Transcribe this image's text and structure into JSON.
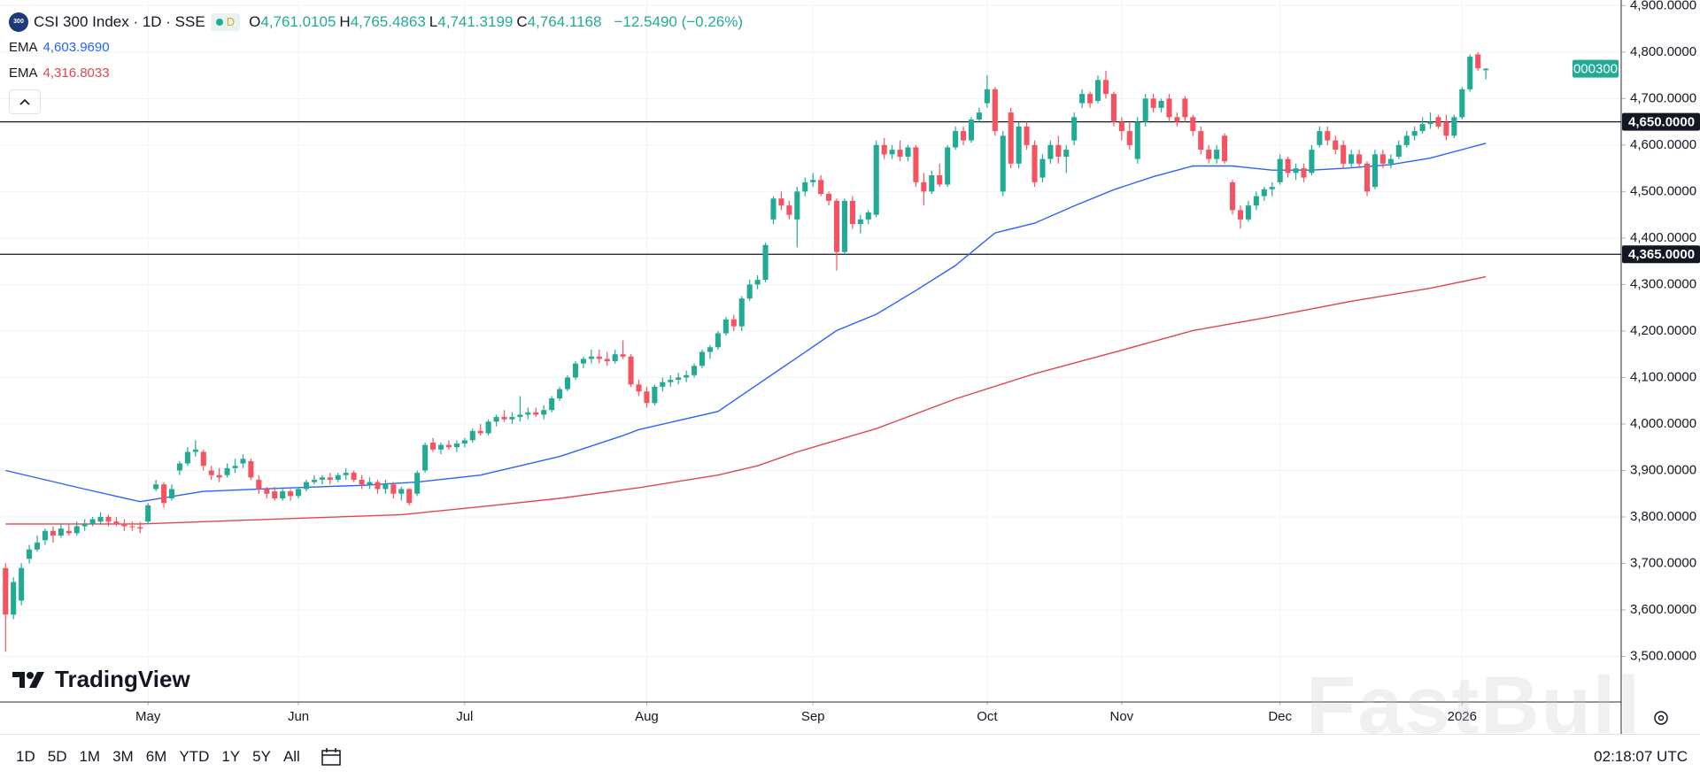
{
  "header": {
    "logo": "300",
    "symbol": "CSI 300 Index · 1D · SSE",
    "badge": "D",
    "ohlc": [
      {
        "key": "O",
        "value": "4,761.0105"
      },
      {
        "key": "H",
        "value": "4,765.4863"
      },
      {
        "key": "L",
        "value": "4,741.3199"
      },
      {
        "key": "C",
        "value": "4,764.1168"
      }
    ],
    "change": "−12.5490 (−0.26%)"
  },
  "indicators": [
    {
      "name": "EMA",
      "value": "4,603.9690"
    },
    {
      "name": "EMA",
      "value": "4,316.8033"
    }
  ],
  "chart_data": {
    "type": "candlestick",
    "up_color": "#22ab94",
    "down_color": "#f7525f",
    "grid": true,
    "ohlc": [
      [
        3690,
        3700,
        3510,
        3590
      ],
      [
        3590,
        3670,
        3580,
        3660
      ],
      [
        3620,
        3700,
        3610,
        3690
      ],
      [
        3710,
        3740,
        3700,
        3730
      ],
      [
        3730,
        3760,
        3725,
        3745
      ],
      [
        3750,
        3775,
        3740,
        3770
      ],
      [
        3770,
        3780,
        3745,
        3760
      ],
      [
        3760,
        3785,
        3755,
        3775
      ],
      [
        3770,
        3785,
        3760,
        3765
      ],
      [
        3765,
        3790,
        3760,
        3780
      ],
      [
        3780,
        3795,
        3770,
        3785
      ],
      [
        3785,
        3800,
        3780,
        3795
      ],
      [
        3790,
        3810,
        3785,
        3800
      ],
      [
        3800,
        3805,
        3780,
        3790
      ],
      [
        3790,
        3800,
        3780,
        3785
      ],
      [
        3785,
        3795,
        3770,
        3780
      ],
      [
        3780,
        3790,
        3770,
        3778
      ],
      [
        3778,
        3790,
        3765,
        3775
      ],
      [
        3790,
        3830,
        3785,
        3825
      ],
      [
        3860,
        3880,
        3855,
        3870
      ],
      [
        3870,
        3875,
        3820,
        3830
      ],
      [
        3840,
        3870,
        3835,
        3860
      ],
      [
        3900,
        3920,
        3890,
        3915
      ],
      [
        3915,
        3950,
        3910,
        3940
      ],
      [
        3940,
        3965,
        3930,
        3945
      ],
      [
        3940,
        3945,
        3900,
        3910
      ],
      [
        3900,
        3910,
        3880,
        3890
      ],
      [
        3890,
        3905,
        3875,
        3885
      ],
      [
        3890,
        3915,
        3885,
        3905
      ],
      [
        3905,
        3925,
        3895,
        3910
      ],
      [
        3915,
        3935,
        3905,
        3925
      ],
      [
        3920,
        3925,
        3880,
        3885
      ],
      [
        3880,
        3890,
        3850,
        3860
      ],
      [
        3860,
        3865,
        3840,
        3850
      ],
      [
        3855,
        3865,
        3835,
        3840
      ],
      [
        3840,
        3860,
        3835,
        3855
      ],
      [
        3855,
        3860,
        3835,
        3845
      ],
      [
        3845,
        3865,
        3840,
        3860
      ],
      [
        3860,
        3880,
        3855,
        3875
      ],
      [
        3875,
        3890,
        3870,
        3880
      ],
      [
        3880,
        3890,
        3870,
        3885
      ],
      [
        3885,
        3895,
        3870,
        3880
      ],
      [
        3880,
        3895,
        3875,
        3890
      ],
      [
        3890,
        3905,
        3880,
        3895
      ],
      [
        3895,
        3900,
        3875,
        3880
      ],
      [
        3880,
        3890,
        3860,
        3870
      ],
      [
        3870,
        3885,
        3860,
        3875
      ],
      [
        3875,
        3880,
        3850,
        3860
      ],
      [
        3860,
        3880,
        3850,
        3870
      ],
      [
        3870,
        3875,
        3840,
        3850
      ],
      [
        3850,
        3865,
        3835,
        3860
      ],
      [
        3860,
        3862,
        3825,
        3830
      ],
      [
        3850,
        3900,
        3845,
        3895
      ],
      [
        3900,
        3960,
        3895,
        3955
      ],
      [
        3960,
        3970,
        3940,
        3945
      ],
      [
        3945,
        3960,
        3935,
        3955
      ],
      [
        3955,
        3965,
        3945,
        3950
      ],
      [
        3950,
        3965,
        3940,
        3958
      ],
      [
        3958,
        3970,
        3950,
        3965
      ],
      [
        3965,
        3990,
        3960,
        3985
      ],
      [
        3985,
        4000,
        3975,
        3980
      ],
      [
        3980,
        4010,
        3975,
        4005
      ],
      [
        4005,
        4020,
        3995,
        4015
      ],
      [
        4015,
        4030,
        4005,
        4010
      ],
      [
        4010,
        4025,
        4000,
        4015
      ],
      [
        4015,
        4060,
        4005,
        4020
      ],
      [
        4020,
        4035,
        4010,
        4025
      ],
      [
        4025,
        4035,
        4015,
        4020
      ],
      [
        4020,
        4040,
        4010,
        4030
      ],
      [
        4030,
        4060,
        4025,
        4055
      ],
      [
        4055,
        4080,
        4050,
        4075
      ],
      [
        4075,
        4105,
        4070,
        4100
      ],
      [
        4100,
        4135,
        4095,
        4130
      ],
      [
        4130,
        4145,
        4120,
        4140
      ],
      [
        4140,
        4160,
        4130,
        4145
      ],
      [
        4145,
        4160,
        4130,
        4140
      ],
      [
        4140,
        4155,
        4125,
        4135
      ],
      [
        4135,
        4160,
        4130,
        4150
      ],
      [
        4150,
        4180,
        4140,
        4145
      ],
      [
        4145,
        4150,
        4080,
        4085
      ],
      [
        4085,
        4095,
        4060,
        4070
      ],
      [
        4070,
        4080,
        4035,
        4045
      ],
      [
        4045,
        4085,
        4040,
        4080
      ],
      [
        4080,
        4100,
        4070,
        4090
      ],
      [
        4090,
        4105,
        4080,
        4095
      ],
      [
        4095,
        4110,
        4085,
        4100
      ],
      [
        4100,
        4115,
        4090,
        4105
      ],
      [
        4105,
        4130,
        4100,
        4125
      ],
      [
        4125,
        4160,
        4120,
        4155
      ],
      [
        4155,
        4170,
        4140,
        4165
      ],
      [
        4165,
        4200,
        4160,
        4195
      ],
      [
        4195,
        4230,
        4190,
        4225
      ],
      [
        4225,
        4235,
        4200,
        4210
      ],
      [
        4210,
        4275,
        4200,
        4270
      ],
      [
        4270,
        4310,
        4265,
        4300
      ],
      [
        4300,
        4320,
        4290,
        4310
      ],
      [
        4310,
        4390,
        4305,
        4385
      ],
      [
        4440,
        4490,
        4430,
        4485
      ],
      [
        4485,
        4500,
        4460,
        4470
      ],
      [
        4470,
        4480,
        4440,
        4450
      ],
      [
        4440,
        4510,
        4380,
        4500
      ],
      [
        4500,
        4530,
        4490,
        4520
      ],
      [
        4520,
        4540,
        4510,
        4525
      ],
      [
        4525,
        4535,
        4490,
        4495
      ],
      [
        4495,
        4500,
        4470,
        4480
      ],
      [
        4480,
        4485,
        4330,
        4370
      ],
      [
        4370,
        4485,
        4365,
        4480
      ],
      [
        4480,
        4490,
        4420,
        4430
      ],
      [
        4430,
        4450,
        4410,
        4440
      ],
      [
        4440,
        4460,
        4430,
        4455
      ],
      [
        4450,
        4610,
        4445,
        4600
      ],
      [
        4600,
        4615,
        4570,
        4580
      ],
      [
        4580,
        4600,
        4570,
        4590
      ],
      [
        4590,
        4610,
        4565,
        4575
      ],
      [
        4575,
        4600,
        4565,
        4595
      ],
      [
        4595,
        4600,
        4510,
        4520
      ],
      [
        4520,
        4540,
        4470,
        4500
      ],
      [
        4500,
        4545,
        4495,
        4535
      ],
      [
        4535,
        4560,
        4510,
        4515
      ],
      [
        4515,
        4600,
        4510,
        4595
      ],
      [
        4595,
        4640,
        4590,
        4630
      ],
      [
        4630,
        4640,
        4600,
        4610
      ],
      [
        4610,
        4660,
        4605,
        4655
      ],
      [
        4655,
        4680,
        4650,
        4670
      ],
      [
        4690,
        4750,
        4680,
        4720
      ],
      [
        4720,
        4725,
        4620,
        4630
      ],
      [
        4500,
        4630,
        4490,
        4620
      ],
      [
        4670,
        4680,
        4550,
        4560
      ],
      [
        4560,
        4650,
        4550,
        4640
      ],
      [
        4640,
        4650,
        4590,
        4600
      ],
      [
        4600,
        4610,
        4510,
        4520
      ],
      [
        4530,
        4580,
        4520,
        4570
      ],
      [
        4570,
        4610,
        4560,
        4600
      ],
      [
        4600,
        4620,
        4560,
        4575
      ],
      [
        4575,
        4600,
        4540,
        4590
      ],
      [
        4610,
        4670,
        4600,
        4660
      ],
      [
        4690,
        4720,
        4680,
        4710
      ],
      [
        4710,
        4715,
        4680,
        4690
      ],
      [
        4695,
        4750,
        4690,
        4740
      ],
      [
        4740,
        4760,
        4700,
        4710
      ],
      [
        4710,
        4715,
        4640,
        4650
      ],
      [
        4650,
        4660,
        4610,
        4630
      ],
      [
        4630,
        4650,
        4590,
        4600
      ],
      [
        4570,
        4660,
        4560,
        4650
      ],
      [
        4650,
        4710,
        4640,
        4700
      ],
      [
        4700,
        4710,
        4670,
        4680
      ],
      [
        4680,
        4700,
        4670,
        4695
      ],
      [
        4700,
        4710,
        4650,
        4660
      ],
      [
        4660,
        4670,
        4640,
        4650
      ],
      [
        4700,
        4705,
        4650,
        4660
      ],
      [
        4660,
        4665,
        4620,
        4630
      ],
      [
        4630,
        4640,
        4580,
        4590
      ],
      [
        4590,
        4600,
        4560,
        4570
      ],
      [
        4570,
        4600,
        4560,
        4590
      ],
      [
        4620,
        4625,
        4560,
        4565
      ],
      [
        4520,
        4525,
        4450,
        4460
      ],
      [
        4460,
        4470,
        4420,
        4440
      ],
      [
        4440,
        4480,
        4435,
        4470
      ],
      [
        4470,
        4500,
        4460,
        4490
      ],
      [
        4490,
        4510,
        4480,
        4505
      ],
      [
        4505,
        4520,
        4490,
        4510
      ],
      [
        4520,
        4580,
        4515,
        4570
      ],
      [
        4570,
        4575,
        4530,
        4540
      ],
      [
        4540,
        4560,
        4525,
        4550
      ],
      [
        4550,
        4560,
        4520,
        4530
      ],
      [
        4540,
        4600,
        4535,
        4590
      ],
      [
        4600,
        4640,
        4595,
        4630
      ],
      [
        4630,
        4640,
        4600,
        4610
      ],
      [
        4610,
        4620,
        4580,
        4590
      ],
      [
        4600,
        4610,
        4550,
        4560
      ],
      [
        4560,
        4590,
        4550,
        4580
      ],
      [
        4580,
        4590,
        4550,
        4560
      ],
      [
        4560,
        4565,
        4490,
        4500
      ],
      [
        4510,
        4590,
        4505,
        4580
      ],
      [
        4580,
        4590,
        4550,
        4560
      ],
      [
        4560,
        4580,
        4550,
        4570
      ],
      [
        4575,
        4610,
        4570,
        4600
      ],
      [
        4600,
        4630,
        4595,
        4620
      ],
      [
        4620,
        4640,
        4610,
        4630
      ],
      [
        4630,
        4660,
        4625,
        4645
      ],
      [
        4645,
        4670,
        4635,
        4650
      ],
      [
        4660,
        4665,
        4635,
        4640
      ],
      [
        4650,
        4665,
        4610,
        4620
      ],
      [
        4620,
        4665,
        4615,
        4660
      ],
      [
        4660,
        4725,
        4655,
        4720
      ],
      [
        4720,
        4795,
        4715,
        4790
      ],
      [
        4795,
        4800,
        4760,
        4765
      ],
      [
        4761.0105,
        4765.4863,
        4741.3199,
        4764.1168
      ]
    ],
    "series": [
      {
        "name": "EMA",
        "color": "#2962ff",
        "x": [
          0,
          10,
          17,
          25,
          35,
          45,
          52,
          60,
          70,
          78,
          80,
          90,
          95,
          100,
          105,
          110,
          115,
          120,
          125,
          130,
          135,
          140,
          145,
          150,
          155,
          160,
          165,
          170,
          175,
          180,
          187
        ],
        "values": [
          3900,
          3860,
          3833,
          3855,
          3862,
          3868,
          3875,
          3890,
          3930,
          3975,
          3988,
          4027,
          4085,
          4143,
          4201,
          4236,
          4287,
          4341,
          4411,
          4432,
          4469,
          4504,
          4532,
          4555,
          4555,
          4546,
          4546,
          4551,
          4558,
          4572,
          4603.969
        ]
      },
      {
        "name": "EMA",
        "color": "#e0464f",
        "x": [
          0,
          17,
          30,
          50,
          60,
          70,
          80,
          90,
          95,
          100,
          110,
          120,
          130,
          140,
          150,
          160,
          170,
          180,
          187
        ],
        "values": [
          3785,
          3785,
          3793,
          3805,
          3822,
          3840,
          3863,
          3890,
          3910,
          3940,
          3990,
          4054,
          4108,
          4154,
          4201,
          4231,
          4264,
          4292,
          4316.8033
        ]
      }
    ],
    "levels": [
      {
        "value": 4650,
        "label": "4,650.0000"
      },
      {
        "value": 4365,
        "label": "4,365.0000"
      }
    ],
    "last_label": "000300",
    "xlim": [
      -0.7,
      204.1
    ],
    "xticks": [
      {
        "value": 18,
        "label": "May"
      },
      {
        "value": 37,
        "label": "Jun"
      },
      {
        "value": 58,
        "label": "Jul"
      },
      {
        "value": 81,
        "label": "Aug"
      },
      {
        "value": 102,
        "label": "Sep"
      },
      {
        "value": 124,
        "label": "Oct"
      },
      {
        "value": 141,
        "label": "Nov"
      },
      {
        "value": 161,
        "label": "Dec"
      },
      {
        "value": 184,
        "label": "2026"
      }
    ],
    "ylim": [
      3402,
      4912
    ],
    "yticks": [
      {
        "value": 3500,
        "label": "3,500.0000"
      },
      {
        "value": 3600,
        "label": "3,600.0000"
      },
      {
        "value": 3700,
        "label": "3,700.0000"
      },
      {
        "value": 3800,
        "label": "3,800.0000"
      },
      {
        "value": 3900,
        "label": "3,900.0000"
      },
      {
        "value": 4000,
        "label": "4,000.0000"
      },
      {
        "value": 4100,
        "label": "4,100.0000"
      },
      {
        "value": 4200,
        "label": "4,200.0000"
      },
      {
        "value": 4300,
        "label": "4,300.0000"
      },
      {
        "value": 4400,
        "label": "4,400.0000"
      },
      {
        "value": 4500,
        "label": "4,500.0000"
      },
      {
        "value": 4600,
        "label": "4,600.0000"
      },
      {
        "value": 4700,
        "label": "4,700.0000"
      },
      {
        "value": 4800,
        "label": "4,800.0000"
      },
      {
        "value": 4900,
        "label": "4,900.0000"
      }
    ]
  },
  "branding": "TradingView",
  "watermark": "FastBull",
  "toolbar": {
    "ranges": [
      "1D",
      "5D",
      "1M",
      "3M",
      "6M",
      "YTD",
      "1Y",
      "5Y",
      "All"
    ],
    "time": "02:18:07 UTC"
  }
}
